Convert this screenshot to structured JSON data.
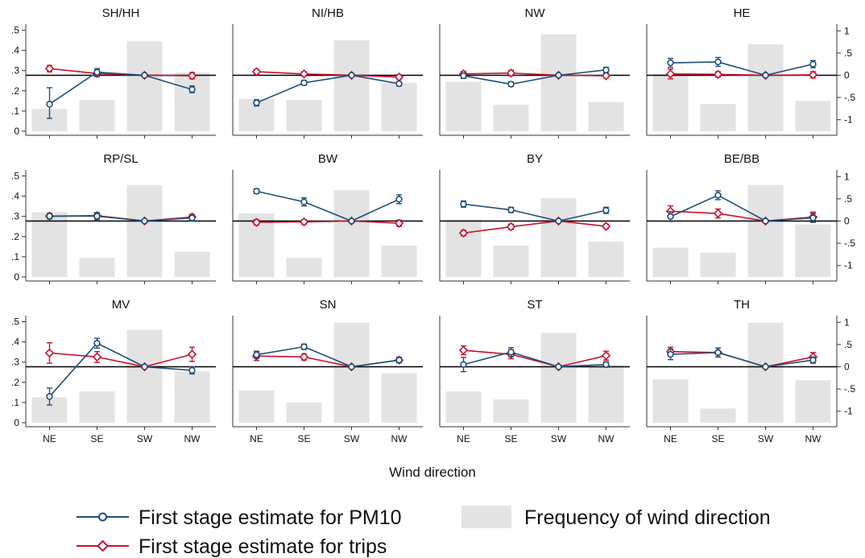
{
  "colors": {
    "pm10": "#1f4e79",
    "trips": "#c8102e",
    "frequency": "#e3e3e3",
    "axis": "#333333",
    "reference_line": "#000000"
  },
  "legend": {
    "pm10": "First stage estimate for PM10",
    "trips": "First stage estimate for trips",
    "frequency": "Frequency of wind direction",
    "position": "bottom"
  },
  "chart_data": {
    "type": "bar",
    "layout": "small multiples, 3 rows x 4 columns",
    "xlabel": "Wind direction",
    "categories": [
      "NE",
      "SE",
      "SW",
      "NW"
    ],
    "left_axis": {
      "range": [
        -0.02,
        0.53
      ],
      "ticks": [
        0,
        0.1,
        0.2,
        0.3,
        0.4,
        0.5
      ],
      "tick_labels": [
        "0",
        ".1",
        ".2",
        ".3",
        ".4",
        ".5"
      ]
    },
    "right_axis": {
      "range": [
        -1.35,
        1.15
      ],
      "ticks": [
        -1,
        -0.5,
        0,
        0.5,
        1
      ],
      "tick_labels": [
        "-1",
        "-.5",
        "0",
        ".5",
        "1"
      ]
    },
    "reference_line": 0,
    "grid": false,
    "panels": [
      {
        "title": "SH/HH",
        "frequency": [
          0.11,
          0.155,
          0.445,
          0.29
        ],
        "pm10": [
          -0.65,
          0.07,
          0,
          -0.32
        ],
        "pm10_ci": [
          [
            -0.97,
            -0.28
          ],
          [
            -0.02,
            0.15
          ],
          null,
          [
            -0.39,
            -0.24
          ]
        ],
        "trips": [
          0.15,
          0.04,
          0,
          -0.01
        ],
        "trips_ci": [
          [
            0.08,
            0.22
          ],
          [
            -0.03,
            0.11
          ],
          null,
          [
            -0.08,
            0.06
          ]
        ]
      },
      {
        "title": "NI/HB",
        "frequency": [
          0.16,
          0.155,
          0.45,
          0.24
        ],
        "pm10": [
          -0.62,
          -0.17,
          0,
          -0.19
        ],
        "pm10_ci": [
          [
            -0.69,
            -0.55
          ],
          [
            -0.22,
            -0.12
          ],
          null,
          [
            -0.24,
            -0.14
          ]
        ],
        "trips": [
          0.08,
          0.03,
          0,
          -0.04
        ],
        "trips_ci": [
          [
            0.03,
            0.13
          ],
          [
            -0.02,
            0.08
          ],
          null,
          [
            -0.09,
            0.01
          ]
        ]
      },
      {
        "title": "NW",
        "frequency": [
          0.245,
          0.13,
          0.48,
          0.145
        ],
        "pm10": [
          -0.01,
          -0.2,
          0,
          0.12
        ],
        "pm10_ci": [
          [
            -0.07,
            0.05
          ],
          [
            -0.25,
            -0.15
          ],
          null,
          [
            0.06,
            0.18
          ]
        ],
        "trips": [
          0.03,
          0.05,
          0,
          -0.01
        ],
        "trips_ci": [
          [
            -0.03,
            0.09
          ],
          [
            -0.01,
            0.11
          ],
          null,
          [
            -0.06,
            0.04
          ]
        ]
      },
      {
        "title": "HE",
        "frequency": [
          0.285,
          0.135,
          0.43,
          0.15
        ],
        "pm10": [
          0.28,
          0.3,
          0,
          0.25
        ],
        "pm10_ci": [
          [
            0.18,
            0.38
          ],
          [
            0.2,
            0.4
          ],
          null,
          [
            0.17,
            0.33
          ]
        ],
        "trips": [
          0.03,
          0.02,
          0,
          0.01
        ],
        "trips_ci": [
          [
            -0.08,
            0.14
          ],
          [
            -0.04,
            0.08
          ],
          null,
          [
            -0.06,
            0.08
          ]
        ]
      },
      {
        "title": "RP/SL",
        "frequency": [
          0.32,
          0.095,
          0.455,
          0.125
        ],
        "pm10": [
          0.11,
          0.11,
          0,
          0.07
        ],
        "pm10_ci": [
          [
            0.05,
            0.17
          ],
          [
            0.03,
            0.19
          ],
          null,
          [
            0.01,
            0.13
          ]
        ],
        "trips": [
          0.11,
          0.12,
          0,
          0.09
        ],
        "trips_ci": [
          [
            0.05,
            0.17
          ],
          [
            0.06,
            0.18
          ],
          null,
          [
            0.03,
            0.15
          ]
        ]
      },
      {
        "title": "BW",
        "frequency": [
          0.315,
          0.095,
          0.43,
          0.155
        ],
        "pm10": [
          0.67,
          0.43,
          0,
          0.49
        ],
        "pm10_ci": [
          [
            0.62,
            0.72
          ],
          [
            0.34,
            0.52
          ],
          null,
          [
            0.39,
            0.59
          ]
        ],
        "trips": [
          -0.03,
          -0.02,
          0,
          -0.05
        ],
        "trips_ci": [
          [
            -0.09,
            0.03
          ],
          [
            -0.07,
            0.03
          ],
          null,
          [
            -0.12,
            0.02
          ]
        ]
      },
      {
        "title": "BY",
        "frequency": [
          0.285,
          0.155,
          0.39,
          0.175
        ],
        "pm10": [
          0.38,
          0.25,
          0,
          0.24
        ],
        "pm10_ci": [
          [
            0.31,
            0.45
          ],
          [
            0.19,
            0.31
          ],
          null,
          [
            0.17,
            0.31
          ]
        ],
        "trips": [
          -0.27,
          -0.13,
          0,
          -0.12
        ],
        "trips_ci": [
          [
            -0.33,
            -0.21
          ],
          [
            -0.19,
            -0.07
          ],
          null,
          [
            -0.17,
            -0.07
          ]
        ]
      },
      {
        "title": "BE/BB",
        "frequency": [
          0.145,
          0.12,
          0.455,
          0.26
        ],
        "pm10": [
          0.1,
          0.58,
          0,
          0.07
        ],
        "pm10_ci": [
          [
            -0.01,
            0.21
          ],
          [
            0.48,
            0.68
          ],
          null,
          [
            -0.03,
            0.17
          ]
        ],
        "trips": [
          0.22,
          0.17,
          0,
          0.09
        ],
        "trips_ci": [
          [
            0.1,
            0.34
          ],
          [
            0.07,
            0.27
          ],
          null,
          [
            -0.02,
            0.2
          ]
        ]
      },
      {
        "title": "MV",
        "frequency": [
          0.125,
          0.155,
          0.46,
          0.255
        ],
        "pm10": [
          -0.67,
          0.53,
          0,
          -0.08
        ],
        "pm10_ci": [
          [
            -0.86,
            -0.48
          ],
          [
            0.42,
            0.64
          ],
          null,
          [
            -0.16,
            0.0
          ]
        ],
        "trips": [
          0.31,
          0.22,
          0,
          0.28
        ],
        "trips_ci": [
          [
            0.08,
            0.54
          ],
          [
            0.1,
            0.34
          ],
          null,
          [
            0.12,
            0.44
          ]
        ]
      },
      {
        "title": "SN",
        "frequency": [
          0.16,
          0.1,
          0.495,
          0.245
        ],
        "pm10": [
          0.27,
          0.45,
          0,
          0.15
        ],
        "pm10_ci": [
          [
            0.19,
            0.35
          ],
          [
            0.39,
            0.51
          ],
          null,
          [
            0.09,
            0.21
          ]
        ],
        "trips": [
          0.24,
          0.22,
          0,
          0.15
        ],
        "trips_ci": [
          [
            0.14,
            0.34
          ],
          [
            0.15,
            0.29
          ],
          null,
          [
            0.09,
            0.21
          ]
        ]
      },
      {
        "title": "ST",
        "frequency": [
          0.155,
          0.115,
          0.445,
          0.285
        ],
        "pm10": [
          0.05,
          0.33,
          0,
          0.05
        ],
        "pm10_ci": [
          [
            -0.11,
            0.21
          ],
          [
            0.23,
            0.43
          ],
          null,
          [
            -0.01,
            0.11
          ]
        ],
        "trips": [
          0.37,
          0.28,
          0,
          0.25
        ],
        "trips_ci": [
          [
            0.27,
            0.47
          ],
          [
            0.18,
            0.38
          ],
          null,
          [
            0.15,
            0.35
          ]
        ]
      },
      {
        "title": "TH",
        "frequency": [
          0.215,
          0.07,
          0.495,
          0.21
        ],
        "pm10": [
          0.28,
          0.32,
          0,
          0.15
        ],
        "pm10_ci": [
          [
            0.16,
            0.4
          ],
          [
            0.22,
            0.42
          ],
          null,
          [
            0.08,
            0.22
          ]
        ],
        "trips": [
          0.34,
          0.32,
          0,
          0.22
        ],
        "trips_ci": [
          [
            0.24,
            0.44
          ],
          [
            0.22,
            0.42
          ],
          null,
          [
            0.12,
            0.32
          ]
        ]
      }
    ]
  }
}
